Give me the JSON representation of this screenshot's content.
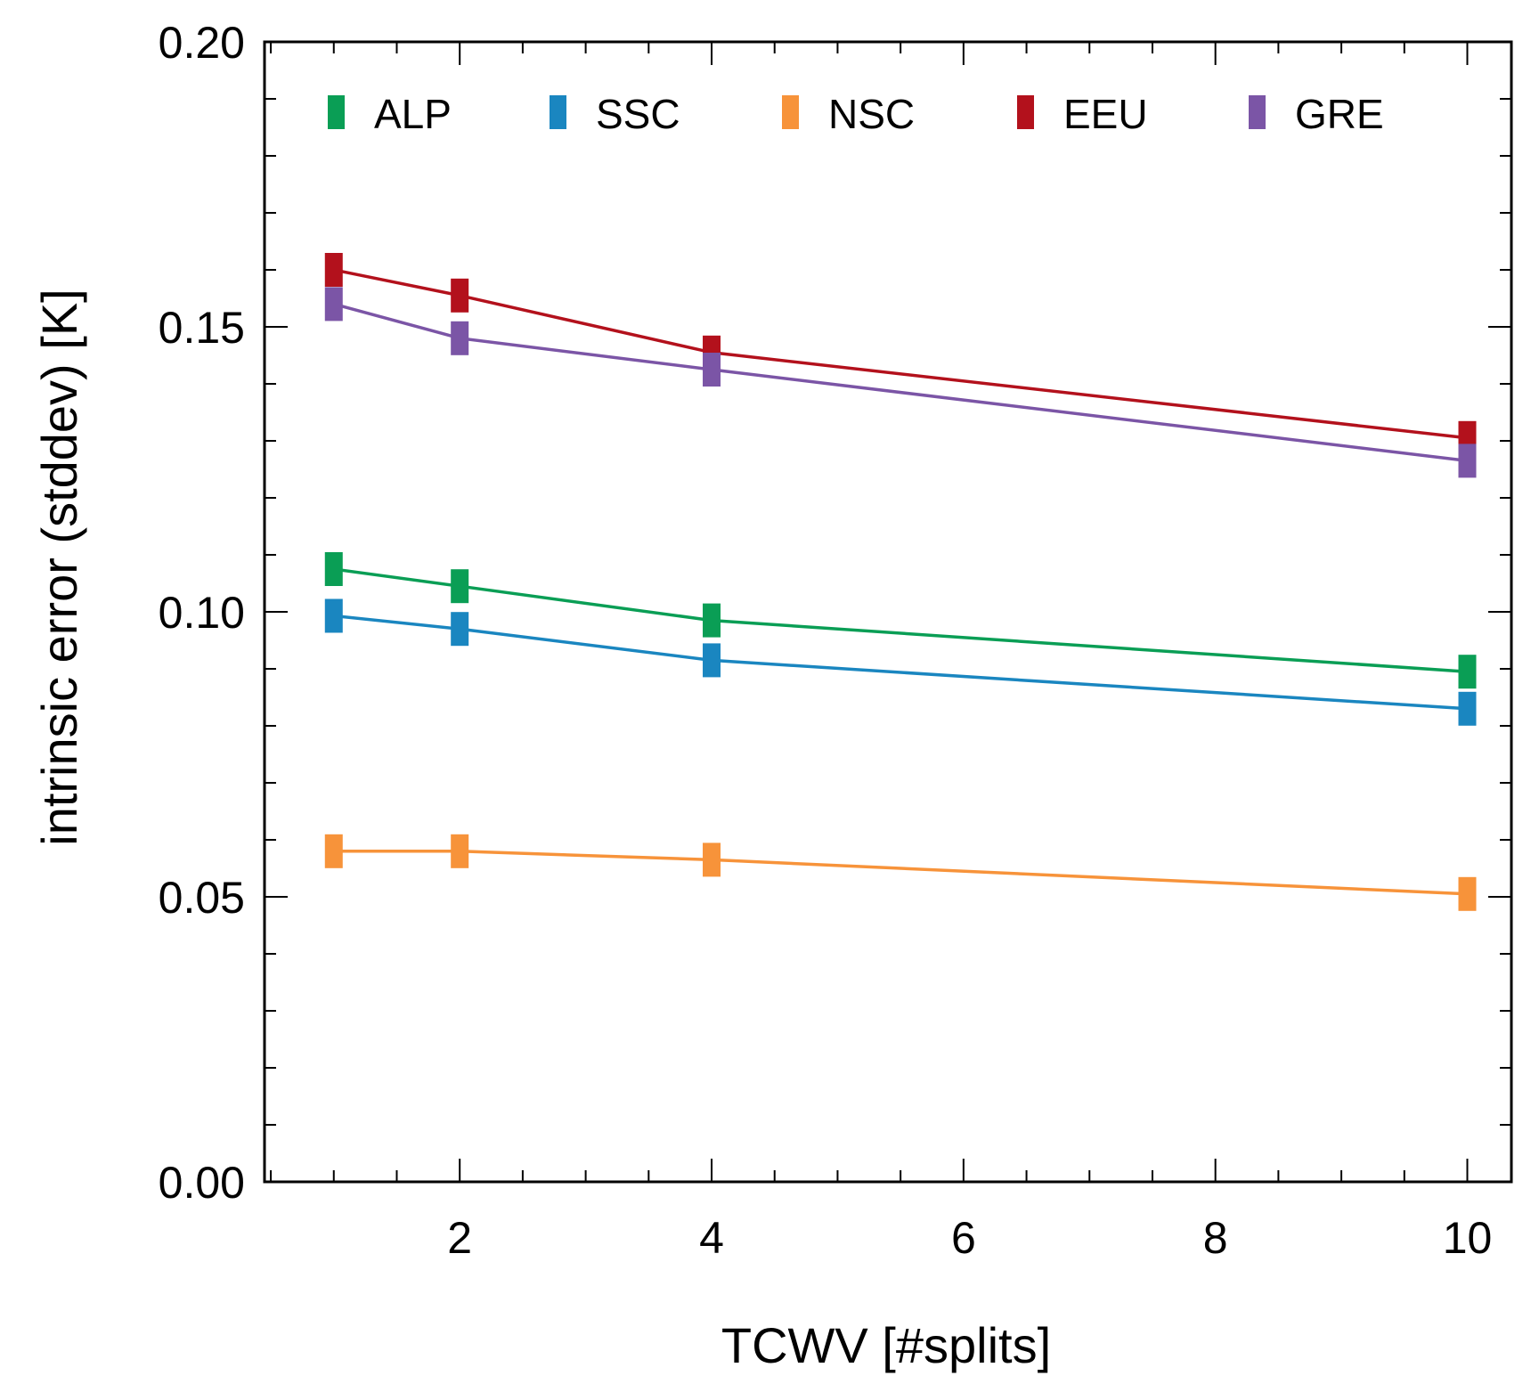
{
  "chart_data": {
    "type": "line",
    "title": "",
    "xlabel": "TCWV [#splits]",
    "ylabel": "intrinsic error (stddev) [K]",
    "xlim": [
      0.45,
      10.35
    ],
    "ylim": [
      0.0,
      0.2
    ],
    "xticks": [
      2,
      4,
      6,
      8,
      10
    ],
    "xtick_labels": [
      "2",
      "4",
      "6",
      "8",
      "10"
    ],
    "xminor_step": 0.5,
    "yticks": [
      0.0,
      0.05,
      0.1,
      0.15,
      0.2
    ],
    "ytick_labels": [
      "0.00",
      "0.05",
      "0.10",
      "0.15",
      "0.20"
    ],
    "yminor_step": 0.01,
    "grid": false,
    "legend_position": "top",
    "x": [
      1,
      2,
      4,
      10
    ],
    "series": [
      {
        "name": "ALP",
        "color": "#0a9e55",
        "values": [
          0.1075,
          0.1045,
          0.0985,
          0.0895
        ]
      },
      {
        "name": "SSC",
        "color": "#1a86c0",
        "values": [
          0.0993,
          0.097,
          0.0915,
          0.083
        ]
      },
      {
        "name": "NSC",
        "color": "#f7933a",
        "values": [
          0.058,
          0.058,
          0.0565,
          0.0505
        ]
      },
      {
        "name": "EEU",
        "color": "#b3111c",
        "values": [
          0.16,
          0.1555,
          0.1455,
          0.1305
        ]
      },
      {
        "name": "GRE",
        "color": "#7b55a6",
        "values": [
          0.154,
          0.148,
          0.1425,
          0.1265
        ]
      }
    ]
  }
}
